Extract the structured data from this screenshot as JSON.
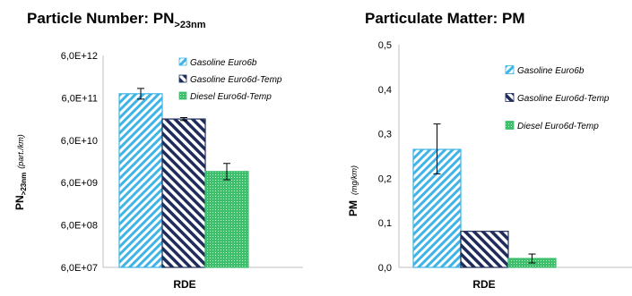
{
  "chart_data": [
    {
      "type": "bar",
      "title": "Particle Number: PN",
      "title_subscript": ">23nm",
      "ylabel": "PN",
      "ylabel_subscript": ">23nm",
      "ylabel_unit": "(part./km)",
      "y_scale": "log",
      "ylim": [
        60000000,
        6000000000000
      ],
      "y_ticks": [
        "6,0E+07",
        "6,0E+08",
        "6,0E+09",
        "6,0E+10",
        "6,0E+11",
        "6,0E+12"
      ],
      "y_tick_values": [
        60000000,
        600000000,
        6000000000,
        60000000000,
        600000000000,
        6000000000000
      ],
      "categories": [
        "RDE"
      ],
      "legend_position": "top-right",
      "series": [
        {
          "name": "Gasoline Euro6b",
          "values": [
            750000000000
          ],
          "error": [
            [
              560000000000,
              1000000000000
            ]
          ],
          "color": "#3fb4e5",
          "pattern": "diag-light"
        },
        {
          "name": "Gasoline Euro6d-Temp",
          "values": [
            190000000000
          ],
          "error": [
            [
              175000000000,
              205000000000
            ]
          ],
          "color": "#1f2c5c",
          "pattern": "diag-dark"
        },
        {
          "name": "Diesel Euro6d-Temp",
          "values": [
            11000000000
          ],
          "error": [
            [
              7000000000,
              17000000000
            ]
          ],
          "color": "#3dbf6c",
          "pattern": "dots-green"
        }
      ]
    },
    {
      "type": "bar",
      "title": "Particulate Matter: PM",
      "ylabel": "PM",
      "ylabel_unit": "(mg/km)",
      "ylim": [
        0,
        0.5
      ],
      "y_ticks": [
        "0,0",
        "0,1",
        "0,2",
        "0,3",
        "0,4",
        "0,5"
      ],
      "y_tick_values": [
        0,
        0.1,
        0.2,
        0.3,
        0.4,
        0.5
      ],
      "categories": [
        "RDE"
      ],
      "legend_position": "top-right",
      "series": [
        {
          "name": "Gasoline Euro6b",
          "values": [
            0.265
          ],
          "error": [
            [
              0.21,
              0.322
            ]
          ],
          "color": "#3fb4e5",
          "pattern": "diag-light"
        },
        {
          "name": "Gasoline Euro6d-Temp",
          "values": [
            0.081
          ],
          "error": [
            [
              0.081,
              0.081
            ]
          ],
          "color": "#1f2c5c",
          "pattern": "diag-dark"
        },
        {
          "name": "Diesel Euro6d-Temp",
          "values": [
            0.02
          ],
          "error": [
            [
              0.01,
              0.03
            ]
          ],
          "color": "#3dbf6c",
          "pattern": "dots-green"
        }
      ]
    }
  ]
}
